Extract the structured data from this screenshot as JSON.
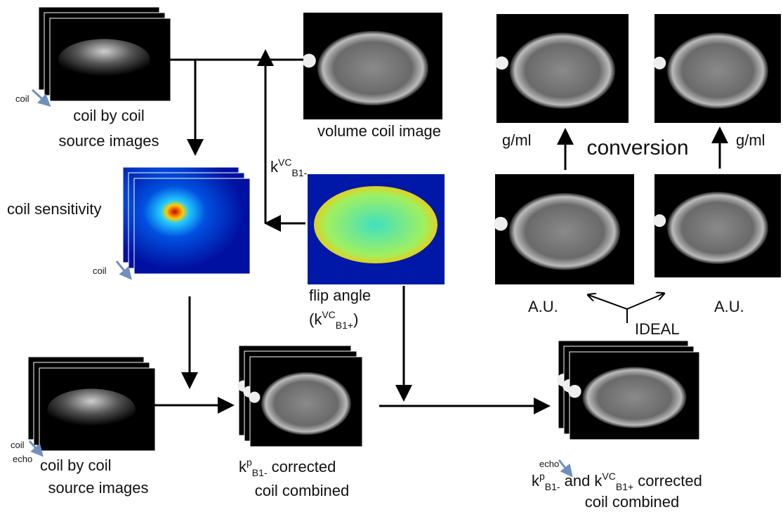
{
  "source_images_top": {
    "coil_label": "coil",
    "caption_line1": "coil by coil",
    "caption_line2": "source images"
  },
  "volume_coil": {
    "caption": "volume coil image"
  },
  "k_vc_b1_minus": {
    "base": "k",
    "sup": "VC",
    "sub": "B1-"
  },
  "coil_sensitivity": {
    "caption": "coil sensitivity",
    "coil_label": "coil"
  },
  "flip_angle": {
    "caption": "flip angle",
    "open": "(k",
    "sup": "VC",
    "sub": "B1+",
    "close": ")"
  },
  "conversion": {
    "left_unit": "g/ml",
    "label": "conversion",
    "right_unit": "g/ml"
  },
  "ideal": {
    "left_unit": "A.U.",
    "right_unit": "A.U.",
    "label": "IDEAL"
  },
  "source_images_bottom": {
    "coil_label": "coil",
    "echo_label": "echo",
    "caption_line1": "coil by coil",
    "caption_line2": "source images"
  },
  "kp_corrected": {
    "base": "k",
    "sup": "p",
    "sub": "B1-",
    "rest": "corrected",
    "line2": "coil combined"
  },
  "full_corrected": {
    "echo_label": "echo",
    "base1": "k",
    "sup1": "p",
    "sub1": "B1-",
    "mid": "and k",
    "sup2": "VC",
    "sub2": "B1+",
    "rest": "corrected",
    "line2": "coil combined"
  }
}
